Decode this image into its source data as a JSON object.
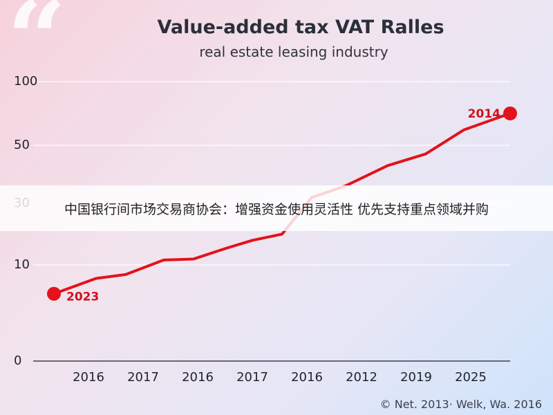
{
  "chart_data": {
    "type": "line",
    "title": "Value-added tax VAT Ralles",
    "subtitle": "real estate leasing industry",
    "xlabel": "",
    "ylabel": "",
    "y_tick_labels": [
      "100",
      "50",
      "30",
      "10",
      "0"
    ],
    "x_tick_labels": [
      "2016",
      "2017",
      "2016",
      "2017",
      "2016",
      "2012",
      "2019",
      "2025"
    ],
    "grid": true,
    "series": [
      {
        "color": "#e3121b",
        "points": [
          {
            "x": 0,
            "y": 7
          },
          {
            "x": 1,
            "y": 8.6
          },
          {
            "x": 1.7,
            "y": 9.0
          },
          {
            "x": 2.6,
            "y": 11.6
          },
          {
            "x": 3.3,
            "y": 11.9
          },
          {
            "x": 4.1,
            "y": 15.5
          },
          {
            "x": 4.7,
            "y": 18
          },
          {
            "x": 5.4,
            "y": 20
          },
          {
            "x": 6.1,
            "y": 32
          },
          {
            "x": 6.9,
            "y": 36
          },
          {
            "x": 7.9,
            "y": 43
          },
          {
            "x": 8.8,
            "y": 47
          },
          {
            "x": 9.7,
            "y": 62
          },
          {
            "x": 10.8,
            "y": 75
          }
        ]
      }
    ],
    "annotations": [
      {
        "text": "2023",
        "point_index": 0
      },
      {
        "text": "2014",
        "point_index": 13
      }
    ]
  },
  "banner": {
    "text": "中国银行间市场交易商协会：增强资金使用灵活性 优先支持重点领域并购"
  },
  "credit": "© Net. 2013· Welk, Wa. 2016",
  "decor": {
    "quote_glyph": "“"
  },
  "colors": {
    "line": "#e3121b",
    "label": "#d40f18",
    "grid": "#ffffff",
    "axis_text": "#1f232b"
  }
}
